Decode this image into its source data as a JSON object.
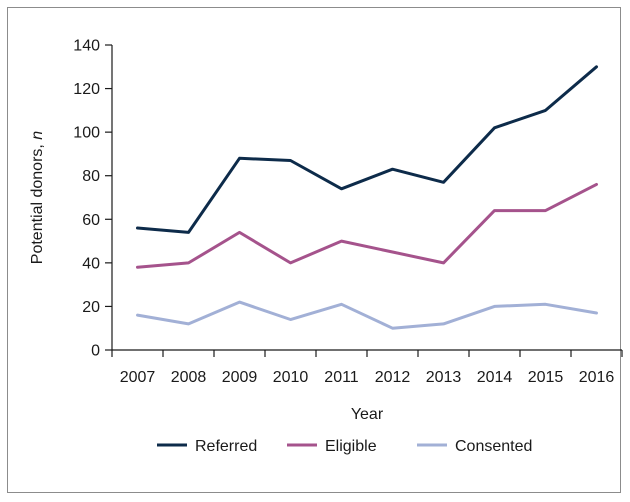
{
  "chart_data": {
    "type": "line",
    "xlabel": "Year",
    "ylabel_prefix": "Potential donors, ",
    "ylabel_italic": "n",
    "ylim": [
      0,
      140
    ],
    "yticks": [
      0,
      20,
      40,
      60,
      80,
      100,
      120,
      140
    ],
    "categories": [
      "2007",
      "2008",
      "2009",
      "2010",
      "2011",
      "2012",
      "2013",
      "2014",
      "2015",
      "2016"
    ],
    "series": [
      {
        "name": "Referred",
        "color": "#0d2b4a",
        "values": [
          56,
          54,
          88,
          87,
          74,
          83,
          77,
          102,
          110,
          130
        ]
      },
      {
        "name": "Eligible",
        "color": "#a5538c",
        "values": [
          38,
          40,
          54,
          40,
          50,
          45,
          40,
          64,
          64,
          76
        ]
      },
      {
        "name": "Consented",
        "color": "#a2b0d6",
        "values": [
          16,
          12,
          22,
          14,
          21,
          10,
          12,
          20,
          21,
          17
        ]
      }
    ],
    "legend_position": "bottom",
    "grid": false
  }
}
